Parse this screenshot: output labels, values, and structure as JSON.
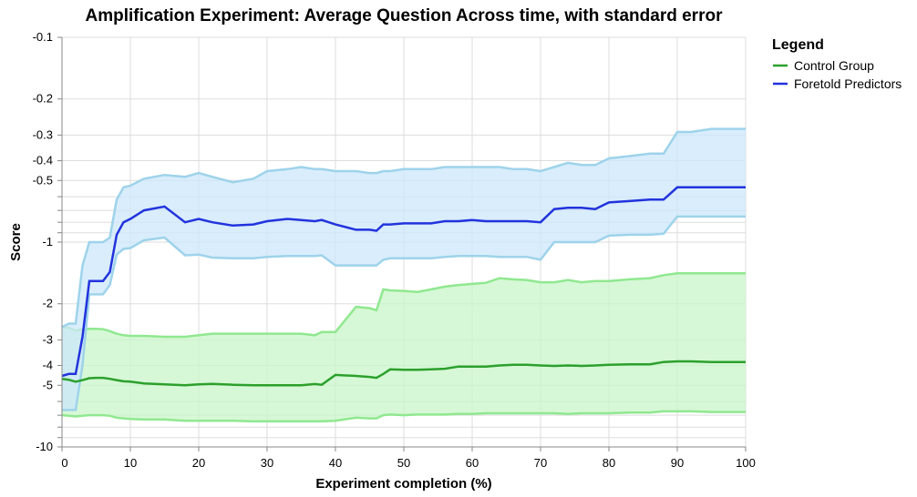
{
  "chart_data": {
    "type": "line",
    "title": "Amplification Experiment: Average Question Across time, with standard error",
    "xlabel": "Experiment completion (%)",
    "ylabel": "Score",
    "y_scale": "log-negative",
    "xlim": [
      0,
      100
    ],
    "ylim": [
      -10,
      -0.1
    ],
    "x_ticks": [
      0,
      10,
      20,
      30,
      40,
      50,
      60,
      70,
      80,
      90,
      100
    ],
    "y_ticks": [
      -0.1,
      -0.2,
      -0.3,
      -0.4,
      -0.5,
      -1,
      -2,
      -3,
      -4,
      -5,
      -10
    ],
    "y_minor_ticks": [
      -0.6,
      -0.7,
      -0.8,
      -0.9,
      -6,
      -7,
      -8,
      -9
    ],
    "grid": true,
    "legend_title": "Legend",
    "legend_position": "right",
    "series": [
      {
        "name": "Control Group",
        "color": "#2ca02c",
        "band_line_color": "#90e890",
        "band_fill_color": "#c8f5c8",
        "x": [
          0,
          1,
          2,
          3,
          4,
          5,
          6,
          7,
          8,
          9,
          10,
          12,
          15,
          18,
          20,
          22,
          25,
          28,
          30,
          33,
          35,
          37,
          38,
          40,
          43,
          45,
          46,
          47,
          48,
          50,
          52,
          54,
          56,
          58,
          60,
          62,
          64,
          66,
          68,
          70,
          72,
          74,
          76,
          78,
          80,
          83,
          86,
          88,
          90,
          92,
          95,
          100
        ],
        "value": [
          -4.65,
          -4.7,
          -4.8,
          -4.72,
          -4.62,
          -4.6,
          -4.6,
          -4.65,
          -4.72,
          -4.78,
          -4.8,
          -4.9,
          -4.95,
          -5.0,
          -4.95,
          -4.92,
          -4.97,
          -5.0,
          -5.0,
          -5.0,
          -5.0,
          -4.93,
          -4.97,
          -4.45,
          -4.5,
          -4.55,
          -4.6,
          -4.4,
          -4.18,
          -4.2,
          -4.2,
          -4.18,
          -4.15,
          -4.05,
          -4.05,
          -4.05,
          -4.0,
          -3.97,
          -3.97,
          -4.0,
          -4.02,
          -4.0,
          -4.02,
          -4.0,
          -3.97,
          -3.95,
          -3.95,
          -3.85,
          -3.82,
          -3.82,
          -3.85,
          -3.85
        ],
        "upper": [
          -2.6,
          -2.62,
          -2.7,
          -2.66,
          -2.65,
          -2.65,
          -2.66,
          -2.72,
          -2.8,
          -2.85,
          -2.87,
          -2.87,
          -2.9,
          -2.9,
          -2.85,
          -2.8,
          -2.8,
          -2.8,
          -2.8,
          -2.8,
          -2.8,
          -2.85,
          -2.75,
          -2.75,
          -2.07,
          -2.1,
          -2.15,
          -1.7,
          -1.72,
          -1.73,
          -1.75,
          -1.7,
          -1.65,
          -1.62,
          -1.6,
          -1.58,
          -1.5,
          -1.52,
          -1.53,
          -1.57,
          -1.57,
          -1.53,
          -1.57,
          -1.55,
          -1.55,
          -1.52,
          -1.5,
          -1.45,
          -1.42,
          -1.42,
          -1.42,
          -1.42
        ],
        "lower": [
          -7.0,
          -7.05,
          -7.1,
          -7.05,
          -7.0,
          -7.0,
          -7.0,
          -7.05,
          -7.2,
          -7.25,
          -7.3,
          -7.35,
          -7.35,
          -7.45,
          -7.45,
          -7.45,
          -7.45,
          -7.5,
          -7.5,
          -7.5,
          -7.5,
          -7.5,
          -7.5,
          -7.45,
          -7.2,
          -7.25,
          -7.25,
          -7.0,
          -6.95,
          -7.0,
          -6.95,
          -6.95,
          -6.95,
          -6.9,
          -6.9,
          -6.85,
          -6.85,
          -6.85,
          -6.85,
          -6.85,
          -6.85,
          -6.9,
          -6.85,
          -6.85,
          -6.85,
          -6.8,
          -6.8,
          -6.7,
          -6.7,
          -6.7,
          -6.75,
          -6.75
        ]
      },
      {
        "name": "Foretold Predictors",
        "color": "#2233dd",
        "band_line_color": "#9ed3ea",
        "band_fill_color": "#cce7fb",
        "x": [
          0,
          1,
          2,
          3,
          4,
          5,
          6,
          7,
          8,
          9,
          10,
          12,
          15,
          18,
          20,
          22,
          25,
          28,
          30,
          33,
          35,
          37,
          38,
          40,
          43,
          45,
          46,
          47,
          48,
          50,
          52,
          54,
          56,
          58,
          60,
          62,
          64,
          66,
          68,
          70,
          72,
          74,
          76,
          78,
          80,
          83,
          86,
          88,
          90,
          92,
          95,
          100
        ],
        "value": [
          -4.5,
          -4.4,
          -4.4,
          -2.9,
          -1.55,
          -1.55,
          -1.55,
          -1.4,
          -0.92,
          -0.8,
          -0.77,
          -0.7,
          -0.67,
          -0.8,
          -0.77,
          -0.8,
          -0.83,
          -0.82,
          -0.79,
          -0.77,
          -0.78,
          -0.79,
          -0.78,
          -0.82,
          -0.87,
          -0.87,
          -0.88,
          -0.82,
          -0.82,
          -0.81,
          -0.81,
          -0.81,
          -0.79,
          -0.79,
          -0.78,
          -0.79,
          -0.79,
          -0.79,
          -0.79,
          -0.8,
          -0.69,
          -0.68,
          -0.68,
          -0.69,
          -0.64,
          -0.63,
          -0.62,
          -0.62,
          -0.54,
          -0.54,
          -0.54,
          -0.54
        ],
        "upper": [
          -2.6,
          -2.5,
          -2.5,
          -1.3,
          -1.0,
          -1.0,
          -1.0,
          -0.95,
          -0.62,
          -0.54,
          -0.53,
          -0.49,
          -0.47,
          -0.48,
          -0.46,
          -0.48,
          -0.51,
          -0.49,
          -0.45,
          -0.44,
          -0.43,
          -0.44,
          -0.44,
          -0.45,
          -0.45,
          -0.46,
          -0.46,
          -0.45,
          -0.45,
          -0.44,
          -0.44,
          -0.44,
          -0.43,
          -0.43,
          -0.43,
          -0.43,
          -0.43,
          -0.44,
          -0.44,
          -0.45,
          -0.43,
          -0.41,
          -0.42,
          -0.42,
          -0.39,
          -0.38,
          -0.37,
          -0.37,
          -0.29,
          -0.29,
          -0.28,
          -0.28
        ],
        "lower": [
          -6.6,
          -6.6,
          -6.6,
          -4.0,
          -1.8,
          -1.8,
          -1.8,
          -1.62,
          -1.15,
          -1.08,
          -1.07,
          -0.98,
          -0.95,
          -1.16,
          -1.15,
          -1.19,
          -1.2,
          -1.2,
          -1.18,
          -1.17,
          -1.17,
          -1.17,
          -1.16,
          -1.3,
          -1.3,
          -1.3,
          -1.3,
          -1.22,
          -1.2,
          -1.2,
          -1.2,
          -1.2,
          -1.18,
          -1.17,
          -1.17,
          -1.17,
          -1.18,
          -1.18,
          -1.18,
          -1.22,
          -1.0,
          -1.0,
          -1.0,
          -1.0,
          -0.93,
          -0.92,
          -0.92,
          -0.91,
          -0.75,
          -0.75,
          -0.75,
          -0.75
        ]
      }
    ]
  }
}
